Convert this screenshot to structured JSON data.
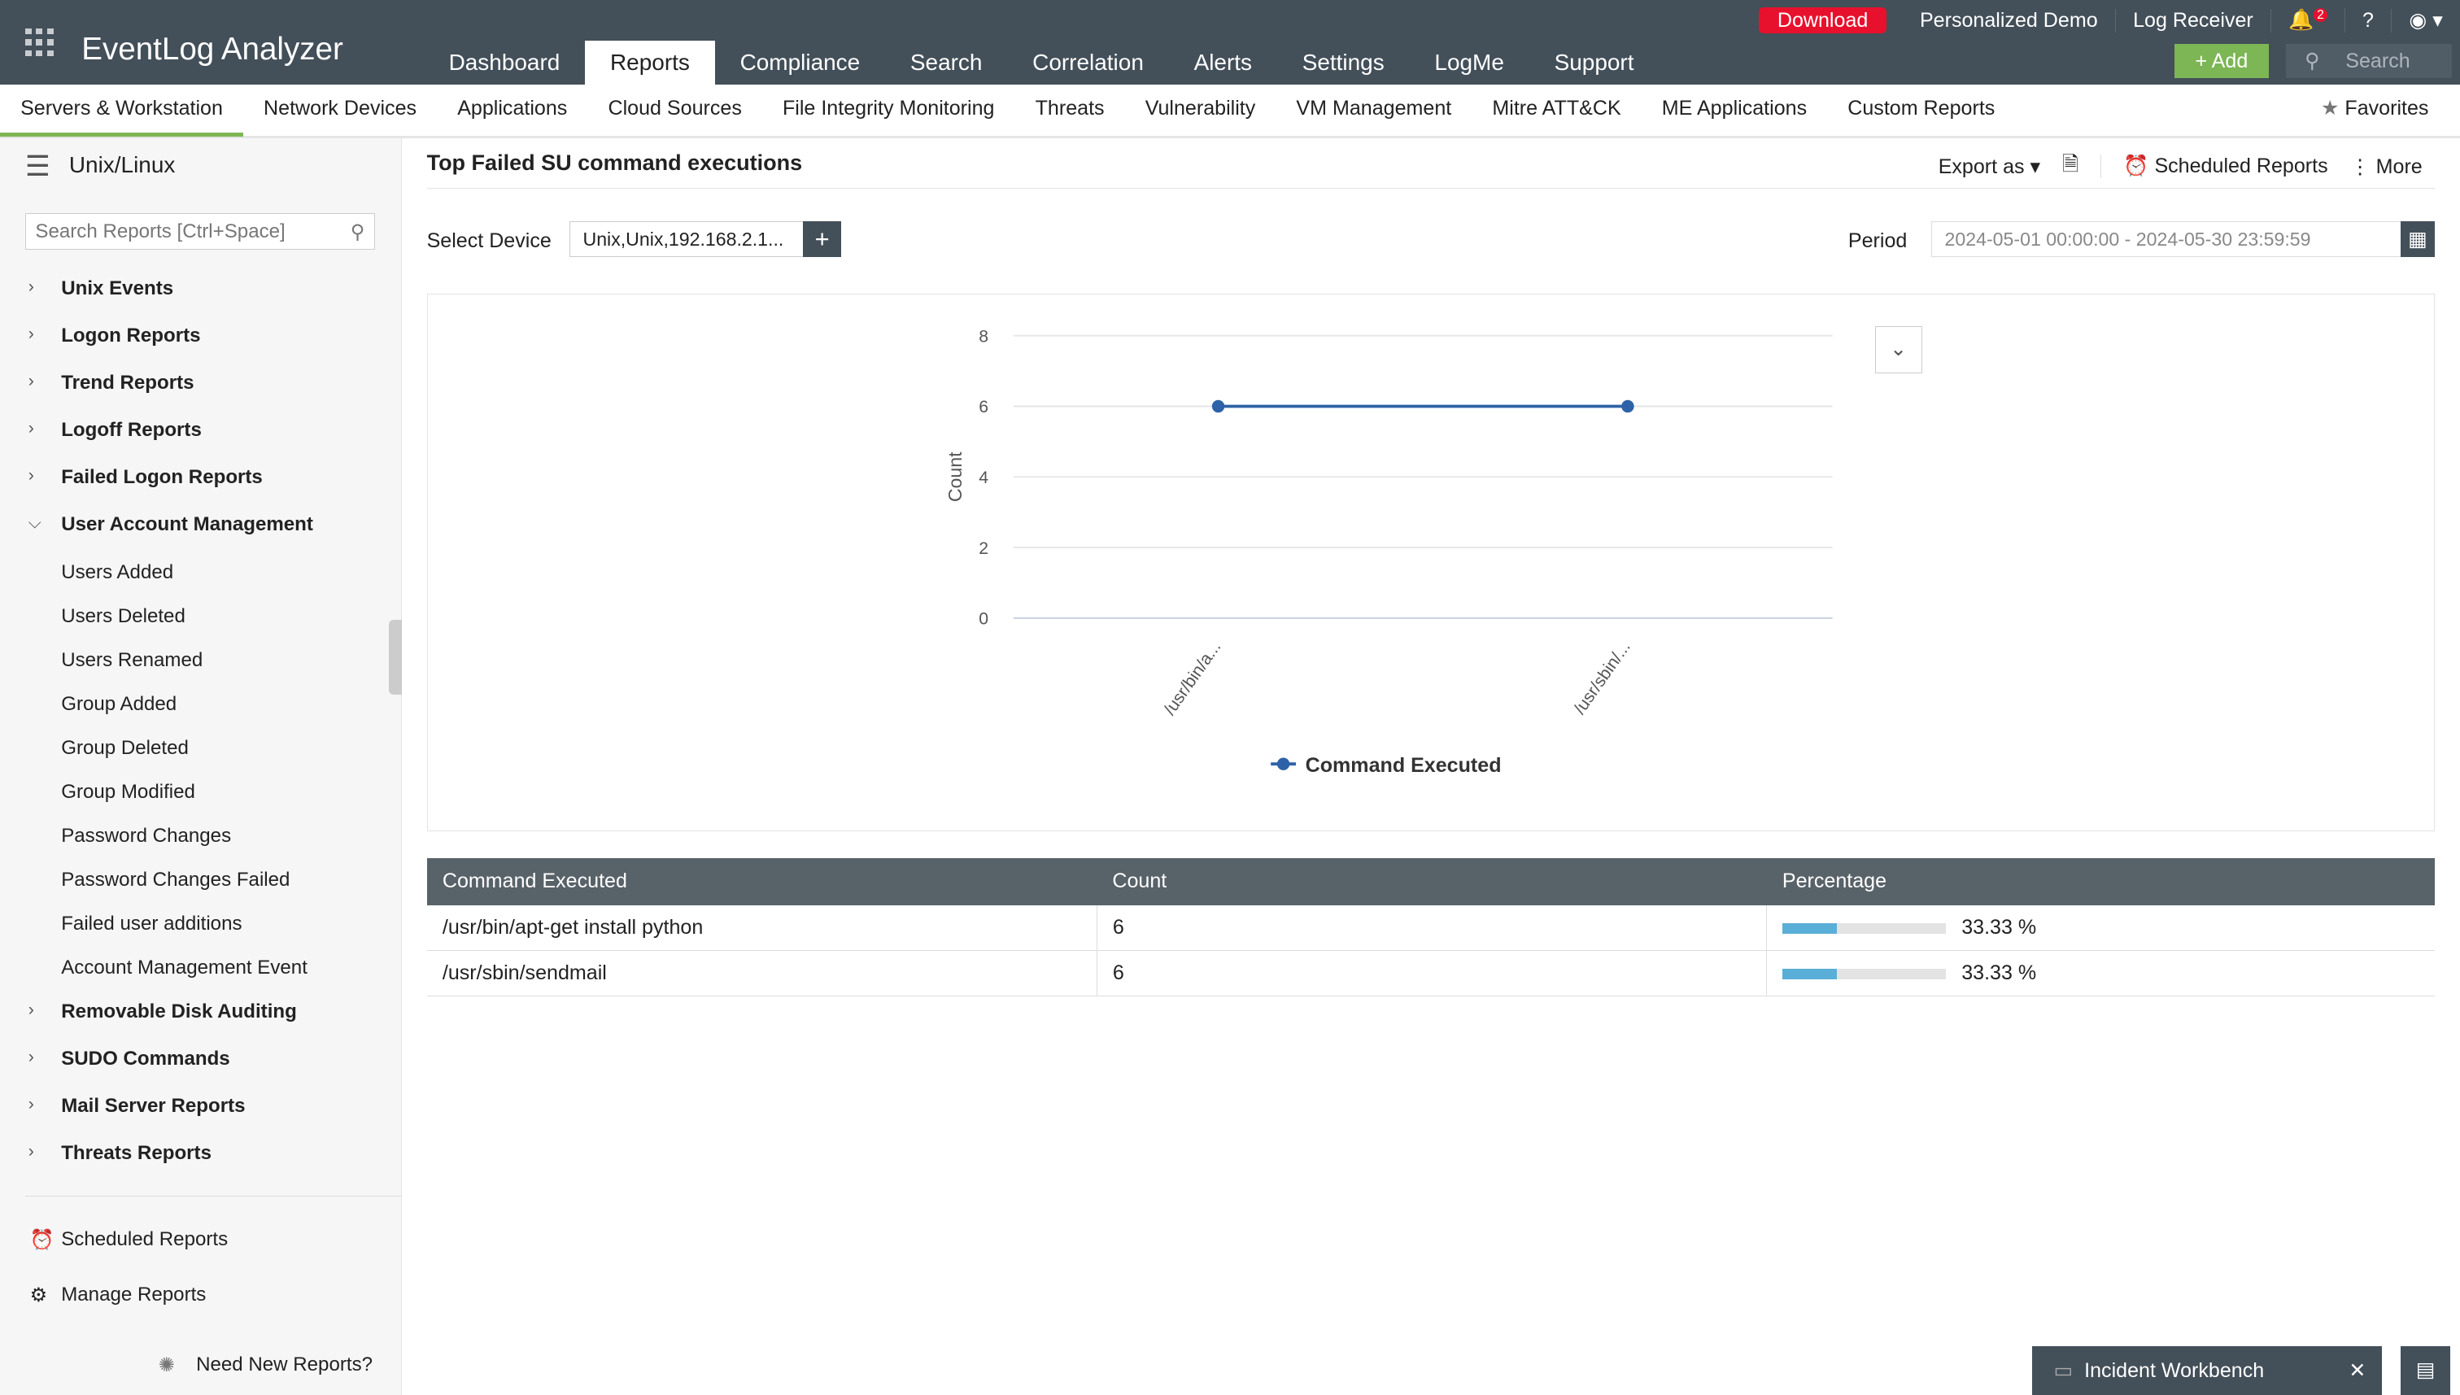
{
  "app": {
    "title": "EventLog Analyzer"
  },
  "nav": {
    "tabs": [
      "Dashboard",
      "Reports",
      "Compliance",
      "Search",
      "Correlation",
      "Alerts",
      "Settings",
      "LogMe",
      "Support"
    ],
    "active": "Reports"
  },
  "topbar": {
    "download": "Download",
    "demo": "Personalized Demo",
    "log_receiver": "Log Receiver",
    "notifications": "2",
    "help": "?",
    "add": "+ Add",
    "search_placeholder": "Search"
  },
  "subnav": {
    "items": [
      "Servers & Workstation",
      "Network Devices",
      "Applications",
      "Cloud Sources",
      "File Integrity Monitoring",
      "Threats",
      "Vulnerability",
      "VM Management",
      "Mitre ATT&CK",
      "ME Applications",
      "Custom Reports"
    ],
    "active": "Servers & Workstation",
    "favorites": "Favorites"
  },
  "sidebar": {
    "title": "Unix/Linux",
    "search_placeholder": "Search Reports [Ctrl+Space]",
    "categories": [
      "Unix Events",
      "Logon Reports",
      "Trend Reports",
      "Logoff Reports",
      "Failed Logon Reports",
      "User Account Management"
    ],
    "sub_items": [
      "Users Added",
      "Users Deleted",
      "Users Renamed",
      "Group Added",
      "Group Deleted",
      "Group Modified",
      "Password Changes",
      "Password Changes Failed",
      "Failed user additions",
      "Account Management Event"
    ],
    "categories_after": [
      "Removable Disk Auditing",
      "SUDO Commands",
      "Mail Server Reports",
      "Threats Reports"
    ],
    "scheduled": "Scheduled Reports",
    "manage": "Manage Reports",
    "need_new": "Need New Reports?"
  },
  "report": {
    "title": "Top Failed SU command executions",
    "export": "Export as",
    "scheduled": "Scheduled Reports",
    "more": "More",
    "select_device_label": "Select Device",
    "device_value": "Unix,Unix,192.168.2.1...",
    "period_label": "Period",
    "period_value": "2024-05-01 00:00:00 - 2024-05-30 23:59:59"
  },
  "chart_data": {
    "type": "line",
    "categories": [
      "/usr/bin/a...",
      "/usr/sbin/..."
    ],
    "series": [
      {
        "name": "Command Executed",
        "values": [
          6,
          6
        ],
        "color": "#2e62a8"
      }
    ],
    "ylabel": "Count",
    "yticks": [
      0,
      2,
      4,
      6,
      8
    ],
    "ylim": [
      0,
      8
    ],
    "grid": true,
    "legend": "bottom"
  },
  "table": {
    "headers": [
      "Command Executed",
      "Count",
      "Percentage"
    ],
    "rows": [
      {
        "command": "/usr/bin/apt-get install python",
        "count": "6",
        "pct": "33.33 %",
        "pct_value": 33.33
      },
      {
        "command": "/usr/sbin/sendmail",
        "count": "6",
        "pct": "33.33 %",
        "pct_value": 33.33
      }
    ]
  },
  "footer": {
    "workbench": "Incident Workbench"
  }
}
